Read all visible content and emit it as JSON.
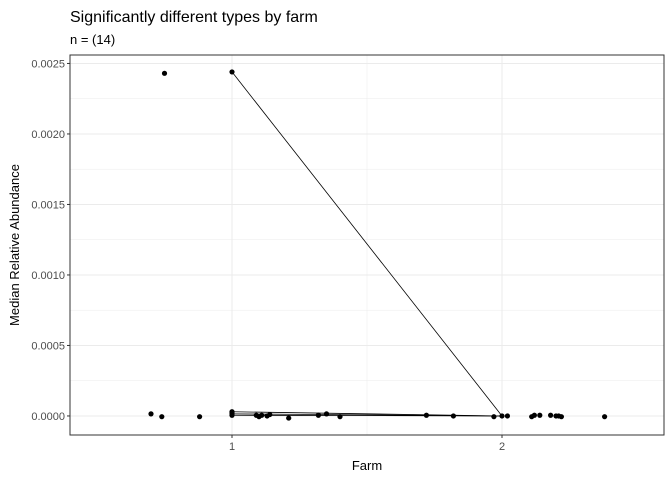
{
  "chart_data": {
    "type": "scatter",
    "title": "Significantly different types by farm",
    "subtitle": "n = (14)",
    "xlabel": "Farm",
    "ylabel": "Median Relative Abundance",
    "x_ticks": [
      1,
      2
    ],
    "x_tick_labels": [
      "1",
      "2"
    ],
    "y_ticks": [
      0,
      0.0005,
      0.001,
      0.0015,
      0.002,
      0.0025
    ],
    "y_tick_labels": [
      "0.0000",
      "0.0005",
      "0.0010",
      "0.0015",
      "0.0020",
      "0.0025"
    ],
    "xlim": [
      0.4,
      2.6
    ],
    "ylim": [
      -0.000135,
      0.00256
    ],
    "grid": true,
    "colors": {
      "points": "#000000",
      "lines": "#000000",
      "grid": "#ebebeb",
      "border": "#333333"
    },
    "points": [
      {
        "x": 0.75,
        "y": 0.00243
      },
      {
        "x": 1.0,
        "y": 0.00244
      },
      {
        "x": 0.7,
        "y": 1.5e-05
      },
      {
        "x": 0.74,
        "y": -5e-06
      },
      {
        "x": 0.88,
        "y": -5e-06
      },
      {
        "x": 1.0,
        "y": 3e-05
      },
      {
        "x": 1.0,
        "y": 2.5e-05
      },
      {
        "x": 1.0,
        "y": 1.5e-05
      },
      {
        "x": 1.0,
        "y": 5e-06
      },
      {
        "x": 1.09,
        "y": 5e-06
      },
      {
        "x": 1.1,
        "y": -5e-06
      },
      {
        "x": 1.11,
        "y": 5e-06
      },
      {
        "x": 1.13,
        "y": 0.0
      },
      {
        "x": 1.14,
        "y": 1e-05
      },
      {
        "x": 1.21,
        "y": -1.5e-05
      },
      {
        "x": 1.32,
        "y": 5e-06
      },
      {
        "x": 1.35,
        "y": 1.5e-05
      },
      {
        "x": 1.4,
        "y": -5e-06
      },
      {
        "x": 1.72,
        "y": 5e-06
      },
      {
        "x": 1.82,
        "y": 0.0
      },
      {
        "x": 1.97,
        "y": -5e-06
      },
      {
        "x": 2.0,
        "y": 0.0
      },
      {
        "x": 2.02,
        "y": 0.0
      },
      {
        "x": 2.11,
        "y": -5e-06
      },
      {
        "x": 2.12,
        "y": 5e-06
      },
      {
        "x": 2.14,
        "y": 5e-06
      },
      {
        "x": 2.18,
        "y": 5e-06
      },
      {
        "x": 2.2,
        "y": 0.0
      },
      {
        "x": 2.21,
        "y": 0.0
      },
      {
        "x": 2.22,
        "y": -5e-06
      },
      {
        "x": 2.38,
        "y": -5e-06
      }
    ],
    "line_segments": [
      {
        "x1": 1.0,
        "y1": 0.00244,
        "x2": 2.0,
        "y2": 0.0
      },
      {
        "x1": 1.0,
        "y1": 3e-05,
        "x2": 2.0,
        "y2": 0.0
      },
      {
        "x1": 1.0,
        "y1": 1.5e-05,
        "x2": 2.0,
        "y2": 0.0
      },
      {
        "x1": 1.0,
        "y1": 5e-06,
        "x2": 2.0,
        "y2": 0.0
      }
    ]
  }
}
